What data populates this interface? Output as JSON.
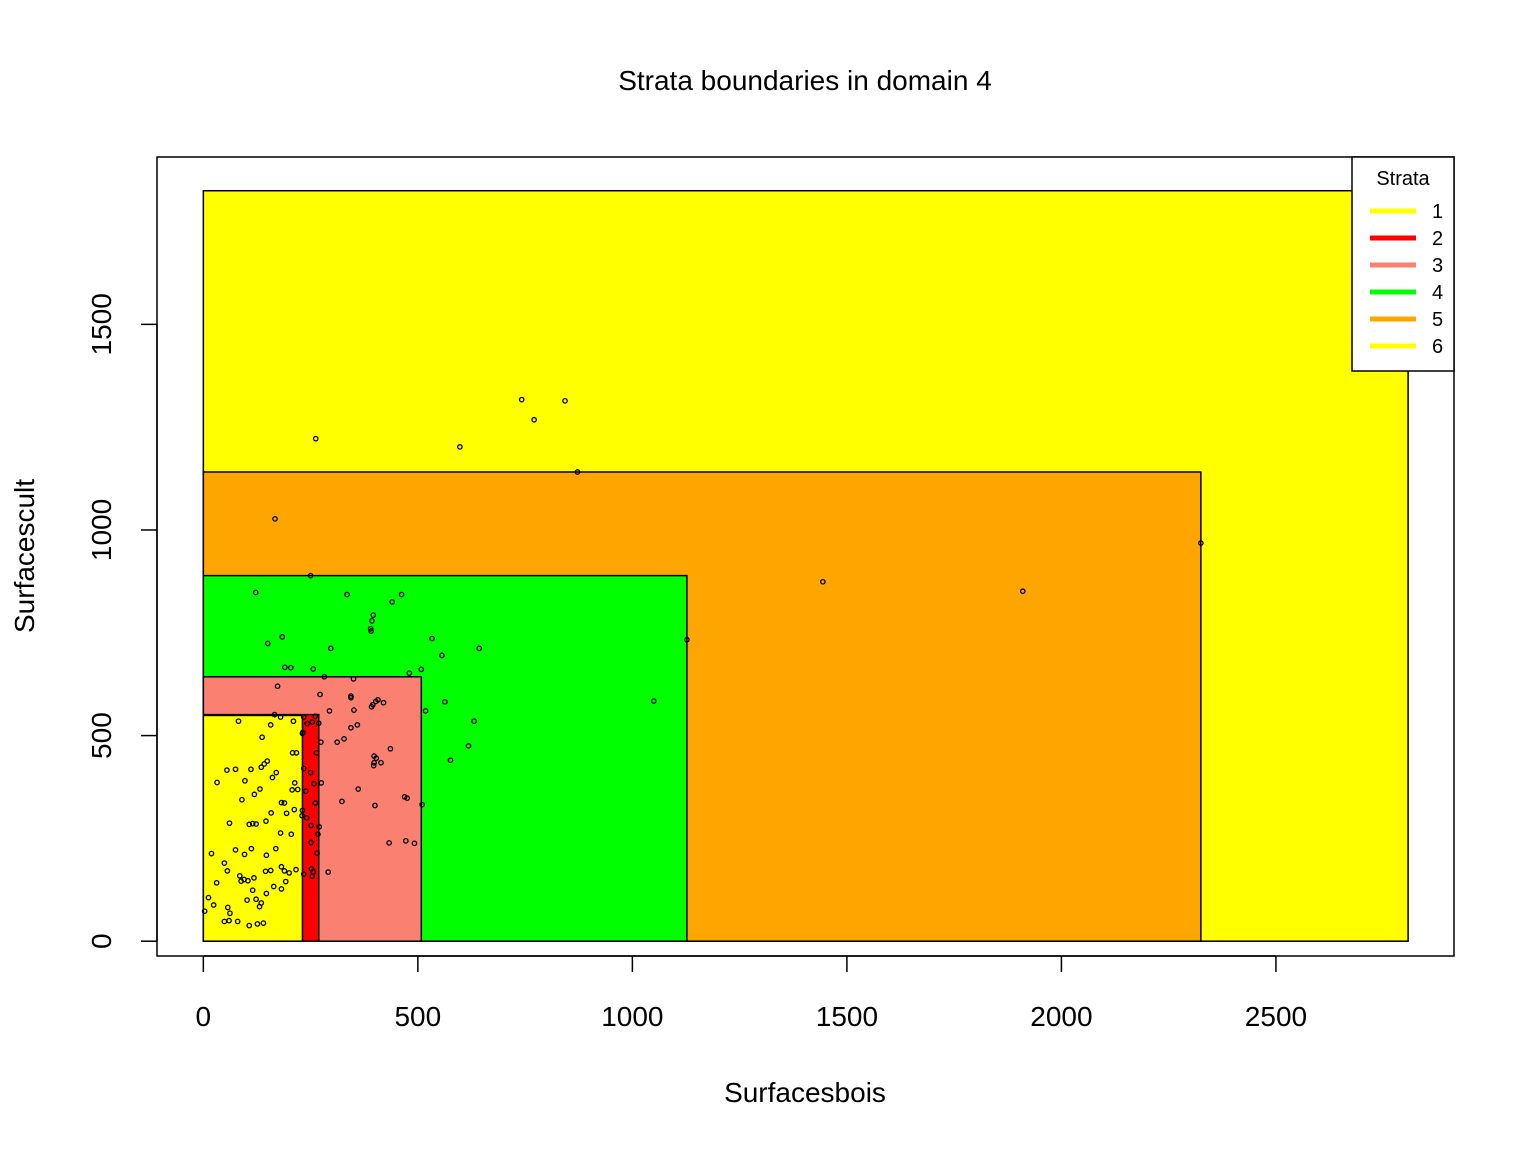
{
  "chart_data": {
    "type": "scatter",
    "title": "Strata boundaries in domain 4",
    "xlabel": "Surfacesbois",
    "ylabel": "Surfacescult",
    "xlim": [
      -108,
      2915
    ],
    "ylim": [
      -36,
      1907
    ],
    "x_ticks": [
      0,
      500,
      1000,
      1500,
      2000,
      2500
    ],
    "y_ticks": [
      0,
      500,
      1000,
      1500
    ],
    "legend": {
      "title": "Strata",
      "placement": "top-right",
      "entries": [
        {
          "label": "1",
          "color": "#FFFF00"
        },
        {
          "label": "2",
          "color": "#FF0000"
        },
        {
          "label": "3",
          "color": "#FA8072"
        },
        {
          "label": "4",
          "color": "#00FF00"
        },
        {
          "label": "5",
          "color": "#FFA500"
        },
        {
          "label": "6",
          "color": "#FFFF00"
        }
      ]
    },
    "strata": [
      {
        "stratum": "6",
        "x_max": 2808,
        "y_max": 1825,
        "color": "#FFFF00"
      },
      {
        "stratum": "5",
        "x_max": 2325,
        "y_max": 1141,
        "color": "#FFA500"
      },
      {
        "stratum": "4",
        "x_max": 1127,
        "y_max": 889,
        "color": "#00FF00"
      },
      {
        "stratum": "3",
        "x_max": 508,
        "y_max": 643,
        "color": "#FA8072"
      },
      {
        "stratum": "2",
        "x_max": 269,
        "y_max": 551,
        "color": "#FF0000"
      },
      {
        "stratum": "1",
        "x_max": 231,
        "y_max": 549,
        "color": "#FFFF00"
      }
    ],
    "points": [
      [
        2808,
        1825
      ],
      [
        742,
        1317
      ],
      [
        843,
        1314
      ],
      [
        771,
        1268
      ],
      [
        262,
        1222
      ],
      [
        598,
        1202
      ],
      [
        872,
        1141
      ],
      [
        167,
        1027
      ],
      [
        2325,
        968
      ],
      [
        1444,
        874
      ],
      [
        1910,
        851
      ],
      [
        250,
        889
      ],
      [
        122,
        848
      ],
      [
        335,
        843
      ],
      [
        462,
        843
      ],
      [
        440,
        825
      ],
      [
        396,
        793
      ],
      [
        393,
        779
      ],
      [
        390,
        760
      ],
      [
        391,
        754
      ],
      [
        1127,
        733
      ],
      [
        184,
        740
      ],
      [
        150,
        724
      ],
      [
        533,
        736
      ],
      [
        643,
        712
      ],
      [
        297,
        712
      ],
      [
        556,
        695
      ],
      [
        190,
        666
      ],
      [
        204,
        665
      ],
      [
        256,
        662
      ],
      [
        480,
        652
      ],
      [
        508,
        661
      ],
      [
        282,
        643
      ],
      [
        350,
        638
      ],
      [
        173,
        620
      ],
      [
        272,
        600
      ],
      [
        344,
        592
      ],
      [
        344,
        596
      ],
      [
        1050,
        584
      ],
      [
        407,
        587
      ],
      [
        563,
        582
      ],
      [
        395,
        575
      ],
      [
        402,
        583
      ],
      [
        420,
        580
      ],
      [
        392,
        570
      ],
      [
        294,
        560
      ],
      [
        351,
        562
      ],
      [
        518,
        560
      ],
      [
        166,
        551
      ],
      [
        180,
        545
      ],
      [
        234,
        545
      ],
      [
        261,
        547
      ],
      [
        82,
        535
      ],
      [
        210,
        535
      ],
      [
        631,
        535
      ],
      [
        254,
        533
      ],
      [
        269,
        530
      ],
      [
        359,
        526
      ],
      [
        157,
        526
      ],
      [
        242,
        529
      ],
      [
        344,
        519
      ],
      [
        231,
        505
      ],
      [
        232,
        508
      ],
      [
        137,
        496
      ],
      [
        328,
        492
      ],
      [
        312,
        484
      ],
      [
        274,
        484
      ],
      [
        618,
        475
      ],
      [
        436,
        468
      ],
      [
        264,
        458
      ],
      [
        208,
        458
      ],
      [
        217,
        458
      ],
      [
        398,
        450
      ],
      [
        403,
        445
      ],
      [
        576,
        440
      ],
      [
        414,
        434
      ],
      [
        397,
        427
      ],
      [
        398,
        434
      ],
      [
        149,
        438
      ],
      [
        142,
        431
      ],
      [
        135,
        423
      ],
      [
        234,
        420
      ],
      [
        111,
        418
      ],
      [
        75,
        418
      ],
      [
        55,
        416
      ],
      [
        250,
        410
      ],
      [
        170,
        410
      ],
      [
        161,
        398
      ],
      [
        97,
        390
      ],
      [
        213,
        385
      ],
      [
        32,
        386
      ],
      [
        275,
        385
      ],
      [
        258,
        383
      ],
      [
        132,
        370
      ],
      [
        119,
        357
      ],
      [
        220,
        369
      ],
      [
        361,
        370
      ],
      [
        239,
        365
      ],
      [
        207,
        368
      ],
      [
        90,
        344
      ],
      [
        469,
        351
      ],
      [
        475,
        348
      ],
      [
        182,
        337
      ],
      [
        189,
        336
      ],
      [
        323,
        340
      ],
      [
        261,
        336
      ],
      [
        400,
        330
      ],
      [
        510,
        332
      ],
      [
        231,
        318
      ],
      [
        212,
        320
      ],
      [
        158,
        312
      ],
      [
        194,
        311
      ],
      [
        230,
        305
      ],
      [
        241,
        300
      ],
      [
        146,
        292
      ],
      [
        61,
        287
      ],
      [
        107,
        284
      ],
      [
        115,
        286
      ],
      [
        123,
        285
      ],
      [
        251,
        281
      ],
      [
        270,
        278
      ],
      [
        205,
        260
      ],
      [
        180,
        263
      ],
      [
        267,
        260
      ],
      [
        433,
        239
      ],
      [
        472,
        244
      ],
      [
        492,
        238
      ],
      [
        251,
        240
      ],
      [
        169,
        225
      ],
      [
        112,
        225
      ],
      [
        75,
        222
      ],
      [
        147,
        209
      ],
      [
        96,
        211
      ],
      [
        265,
        214
      ],
      [
        19,
        213
      ],
      [
        49,
        190
      ],
      [
        182,
        181
      ],
      [
        216,
        174
      ],
      [
        189,
        171
      ],
      [
        157,
        172
      ],
      [
        56,
        171
      ],
      [
        145,
        170
      ],
      [
        256,
        169
      ],
      [
        291,
        168
      ],
      [
        252,
        176
      ],
      [
        200,
        166
      ],
      [
        234,
        163
      ],
      [
        85,
        159
      ],
      [
        95,
        150
      ],
      [
        118,
        154
      ],
      [
        254,
        158
      ],
      [
        88,
        146
      ],
      [
        104,
        147
      ],
      [
        192,
        145
      ],
      [
        31,
        142
      ],
      [
        164,
        133
      ],
      [
        182,
        127
      ],
      [
        115,
        124
      ],
      [
        147,
        116
      ],
      [
        12,
        106
      ],
      [
        123,
        102
      ],
      [
        102,
        100
      ],
      [
        135,
        93
      ],
      [
        131,
        84
      ],
      [
        57,
        82
      ],
      [
        24,
        88
      ],
      [
        3,
        73
      ],
      [
        62,
        68
      ],
      [
        60,
        50
      ],
      [
        49,
        48
      ],
      [
        80,
        48
      ],
      [
        140,
        44
      ],
      [
        126,
        42
      ],
      [
        107,
        38
      ]
    ]
  }
}
